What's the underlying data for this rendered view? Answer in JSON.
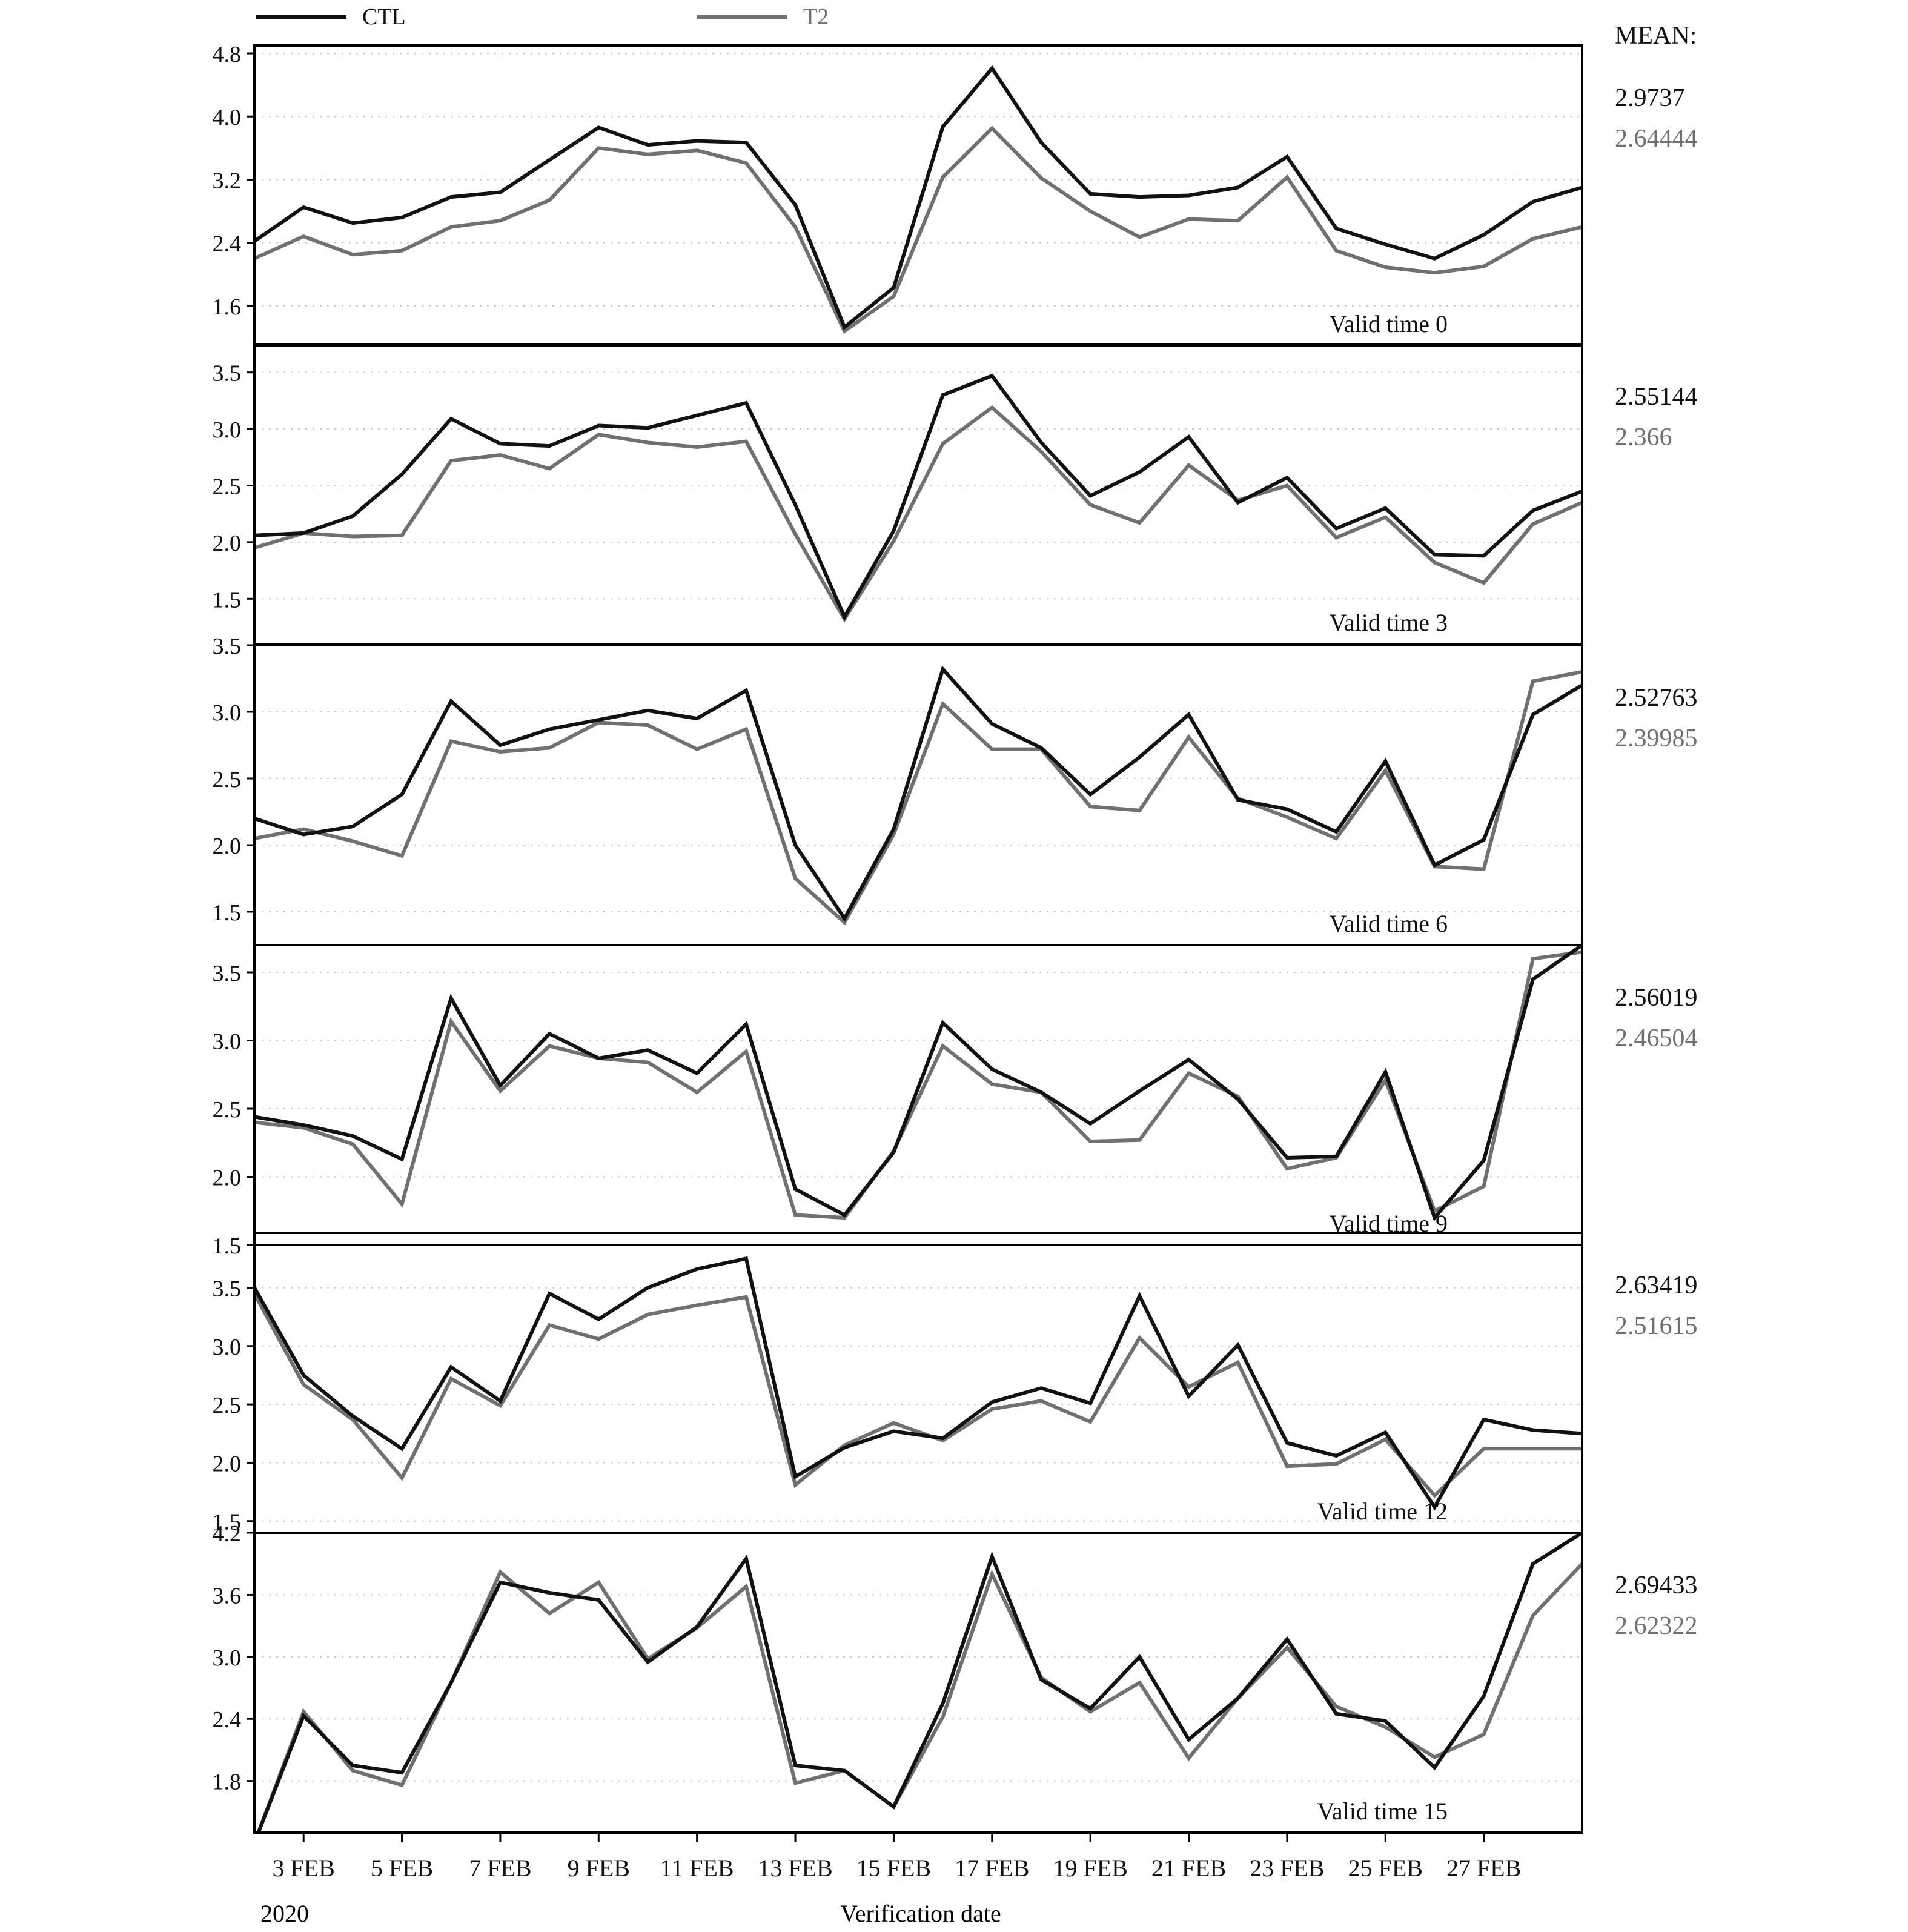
{
  "legend": [
    {
      "label": "CTL",
      "color": "#111111"
    },
    {
      "label": "T2",
      "color": "#707070"
    }
  ],
  "mean_title": "MEAN:",
  "x_axis": {
    "tick_labels": [
      "3 FEB",
      "5 FEB",
      "7 FEB",
      "9 FEB",
      "11 FEB",
      "13 FEB",
      "15 FEB",
      "17 FEB",
      "19 FEB",
      "21 FEB",
      "23 FEB",
      "25 FEB",
      "27 FEB"
    ],
    "year_label": "2020",
    "title": "Verification date"
  },
  "chart_data": [
    {
      "type": "line",
      "annotation": "Valid time 0",
      "x": [
        "2020-02-02",
        "2020-02-03",
        "2020-02-04",
        "2020-02-05",
        "2020-02-06",
        "2020-02-07",
        "2020-02-08",
        "2020-02-09",
        "2020-02-10",
        "2020-02-11",
        "2020-02-12",
        "2020-02-13",
        "2020-02-14",
        "2020-02-15",
        "2020-02-16",
        "2020-02-17",
        "2020-02-18",
        "2020-02-19",
        "2020-02-20",
        "2020-02-21",
        "2020-02-22",
        "2020-02-23",
        "2020-02-24",
        "2020-02-25",
        "2020-02-26",
        "2020-02-27",
        "2020-02-28",
        "2020-02-29"
      ],
      "ylim": [
        1.1,
        4.9
      ],
      "yticks": [
        "1.6",
        "2.4",
        "3.2",
        "4.0",
        "4.8"
      ],
      "series": [
        {
          "name": "CTL",
          "mean": "2.9737",
          "values": [
            2.42,
            2.85,
            2.65,
            2.72,
            2.98,
            3.04,
            3.45,
            3.86,
            3.64,
            3.69,
            3.67,
            2.88,
            1.33,
            1.83,
            3.87,
            4.61,
            3.67,
            3.02,
            2.98,
            3.0,
            3.1,
            3.49,
            2.58,
            2.38,
            2.2,
            2.5,
            2.92,
            3.1
          ]
        },
        {
          "name": "T2",
          "mean": "2.64444",
          "values": [
            2.2,
            2.48,
            2.25,
            2.3,
            2.6,
            2.68,
            2.94,
            3.6,
            3.52,
            3.57,
            3.41,
            2.6,
            1.28,
            1.72,
            3.23,
            3.85,
            3.22,
            2.8,
            2.47,
            2.7,
            2.68,
            3.23,
            2.3,
            2.09,
            2.02,
            2.1,
            2.45,
            2.6
          ]
        }
      ]
    },
    {
      "type": "line",
      "annotation": "Valid time 3",
      "x": [
        "2020-02-02",
        "2020-02-03",
        "2020-02-04",
        "2020-02-05",
        "2020-02-06",
        "2020-02-07",
        "2020-02-08",
        "2020-02-09",
        "2020-02-10",
        "2020-02-11",
        "2020-02-12",
        "2020-02-13",
        "2020-02-14",
        "2020-02-15",
        "2020-02-16",
        "2020-02-17",
        "2020-02-18",
        "2020-02-19",
        "2020-02-20",
        "2020-02-21",
        "2020-02-22",
        "2020-02-23",
        "2020-02-24",
        "2020-02-25",
        "2020-02-26",
        "2020-02-27",
        "2020-02-28",
        "2020-02-29"
      ],
      "ylim": [
        1.1,
        3.75
      ],
      "yticks": [
        "1.5",
        "2.0",
        "2.5",
        "3.0",
        "3.5"
      ],
      "series": [
        {
          "name": "CTL",
          "mean": "2.55144",
          "values": [
            2.06,
            2.08,
            2.23,
            2.6,
            3.09,
            2.87,
            2.85,
            3.03,
            3.01,
            3.12,
            3.23,
            2.33,
            1.34,
            2.1,
            3.3,
            3.47,
            2.88,
            2.41,
            2.62,
            2.93,
            2.35,
            2.57,
            2.12,
            2.3,
            1.89,
            1.88,
            2.28,
            2.45
          ]
        },
        {
          "name": "T2",
          "mean": "2.366",
          "values": [
            1.95,
            2.08,
            2.05,
            2.06,
            2.72,
            2.77,
            2.65,
            2.95,
            2.88,
            2.84,
            2.89,
            2.07,
            1.32,
            2.01,
            2.87,
            3.19,
            2.8,
            2.33,
            2.17,
            2.68,
            2.37,
            2.5,
            2.04,
            2.22,
            1.82,
            1.64,
            2.16,
            2.35
          ]
        }
      ]
    },
    {
      "type": "line",
      "annotation": "Valid time 6",
      "x": [
        "2020-02-02",
        "2020-02-03",
        "2020-02-04",
        "2020-02-05",
        "2020-02-06",
        "2020-02-07",
        "2020-02-08",
        "2020-02-09",
        "2020-02-10",
        "2020-02-11",
        "2020-02-12",
        "2020-02-13",
        "2020-02-14",
        "2020-02-15",
        "2020-02-16",
        "2020-02-17",
        "2020-02-18",
        "2020-02-19",
        "2020-02-20",
        "2020-02-21",
        "2020-02-22",
        "2020-02-23",
        "2020-02-24",
        "2020-02-25",
        "2020-02-26",
        "2020-02-27",
        "2020-02-28",
        "2020-02-29"
      ],
      "ylim": [
        1.25,
        3.5
      ],
      "yticks": [
        "1.5",
        "2.0",
        "2.5",
        "3.0",
        "3.5"
      ],
      "series": [
        {
          "name": "CTL",
          "mean": "2.52763",
          "values": [
            2.2,
            2.08,
            2.14,
            2.38,
            3.08,
            2.75,
            2.87,
            2.94,
            3.01,
            2.95,
            3.16,
            2.0,
            1.45,
            2.12,
            3.32,
            2.91,
            2.73,
            2.38,
            2.66,
            2.98,
            2.34,
            2.27,
            2.1,
            2.63,
            1.85,
            2.04,
            2.98,
            3.2
          ]
        },
        {
          "name": "T2",
          "mean": "2.39985",
          "values": [
            2.05,
            2.12,
            2.03,
            1.92,
            2.78,
            2.7,
            2.73,
            2.92,
            2.9,
            2.72,
            2.87,
            1.75,
            1.42,
            2.08,
            3.06,
            2.72,
            2.72,
            2.29,
            2.26,
            2.81,
            2.35,
            2.21,
            2.05,
            2.56,
            1.84,
            1.82,
            3.23,
            3.3
          ]
        }
      ]
    },
    {
      "type": "line",
      "annotation": "Valid time 9",
      "x": [
        "2020-02-02",
        "2020-02-03",
        "2020-02-04",
        "2020-02-05",
        "2020-02-06",
        "2020-02-07",
        "2020-02-08",
        "2020-02-09",
        "2020-02-10",
        "2020-02-11",
        "2020-02-12",
        "2020-02-13",
        "2020-02-14",
        "2020-02-15",
        "2020-02-16",
        "2020-02-17",
        "2020-02-18",
        "2020-02-19",
        "2020-02-20",
        "2020-02-21",
        "2020-02-22",
        "2020-02-23",
        "2020-02-24",
        "2020-02-25",
        "2020-02-26",
        "2020-02-27",
        "2020-02-28",
        "2020-02-29"
      ],
      "ylim": [
        1.5,
        3.7
      ],
      "yticks": [
        "1.5",
        "2.0",
        "2.5",
        "3.0",
        "3.5"
      ],
      "series": [
        {
          "name": "CTL",
          "mean": "2.56019",
          "values": [
            2.44,
            2.38,
            2.3,
            2.13,
            3.31,
            2.67,
            3.05,
            2.87,
            2.93,
            2.76,
            3.12,
            1.91,
            1.72,
            2.18,
            3.13,
            2.79,
            2.62,
            2.39,
            2.63,
            2.86,
            2.57,
            2.14,
            2.15,
            2.77,
            1.7,
            2.12,
            3.45,
            3.7
          ]
        },
        {
          "name": "T2",
          "mean": "2.46504",
          "values": [
            2.4,
            2.36,
            2.24,
            1.8,
            3.14,
            2.63,
            2.96,
            2.87,
            2.84,
            2.62,
            2.92,
            1.72,
            1.7,
            2.19,
            2.96,
            2.68,
            2.62,
            2.26,
            2.27,
            2.76,
            2.59,
            2.06,
            2.14,
            2.71,
            1.75,
            1.93,
            3.6,
            3.65
          ]
        }
      ]
    },
    {
      "type": "line",
      "annotation": "Valid time 12",
      "x": [
        "2020-02-02",
        "2020-02-03",
        "2020-02-04",
        "2020-02-05",
        "2020-02-06",
        "2020-02-07",
        "2020-02-08",
        "2020-02-09",
        "2020-02-10",
        "2020-02-11",
        "2020-02-12",
        "2020-02-13",
        "2020-02-14",
        "2020-02-15",
        "2020-02-16",
        "2020-02-17",
        "2020-02-18",
        "2020-02-19",
        "2020-02-20",
        "2020-02-21",
        "2020-02-22",
        "2020-02-23",
        "2020-02-24",
        "2020-02-25",
        "2020-02-26",
        "2020-02-27",
        "2020-02-28",
        "2020-02-29"
      ],
      "ylim": [
        1.4,
        3.97
      ],
      "yticks": [
        "1.5",
        "2.0",
        "2.5",
        "3.0",
        "3.5"
      ],
      "series": [
        {
          "name": "CTL",
          "mean": "2.63419",
          "values": [
            3.5,
            2.75,
            2.4,
            2.12,
            2.82,
            2.53,
            3.45,
            3.23,
            3.5,
            3.66,
            3.75,
            1.88,
            2.13,
            2.27,
            2.21,
            2.52,
            2.64,
            2.51,
            3.43,
            2.57,
            3.01,
            2.17,
            2.06,
            2.26,
            1.62,
            2.37,
            2.28,
            2.25
          ]
        },
        {
          "name": "T2",
          "mean": "2.51615",
          "values": [
            3.45,
            2.67,
            2.37,
            1.87,
            2.72,
            2.49,
            3.18,
            3.06,
            3.27,
            3.35,
            3.42,
            1.81,
            2.15,
            2.34,
            2.19,
            2.46,
            2.53,
            2.35,
            3.07,
            2.65,
            2.86,
            1.97,
            1.99,
            2.2,
            1.72,
            2.12,
            2.12,
            2.12
          ]
        }
      ]
    },
    {
      "type": "line",
      "annotation": "Valid time 15",
      "x": [
        "2020-02-02",
        "2020-02-03",
        "2020-02-04",
        "2020-02-05",
        "2020-02-06",
        "2020-02-07",
        "2020-02-08",
        "2020-02-09",
        "2020-02-10",
        "2020-02-11",
        "2020-02-12",
        "2020-02-13",
        "2020-02-14",
        "2020-02-15",
        "2020-02-16",
        "2020-02-17",
        "2020-02-18",
        "2020-02-19",
        "2020-02-20",
        "2020-02-21",
        "2020-02-22",
        "2020-02-23",
        "2020-02-24",
        "2020-02-25",
        "2020-02-26",
        "2020-02-27",
        "2020-02-28",
        "2020-02-29"
      ],
      "ylim": [
        1.3,
        4.2
      ],
      "yticks": [
        "1.8",
        "2.4",
        "3.0",
        "3.6",
        "4.2"
      ],
      "series": [
        {
          "name": "CTL",
          "mean": "2.69433",
          "values": [
            1.2,
            2.43,
            1.95,
            1.88,
            2.75,
            3.72,
            3.62,
            3.55,
            2.95,
            3.29,
            3.95,
            1.95,
            1.9,
            1.55,
            2.55,
            3.97,
            2.78,
            2.5,
            3.0,
            2.2,
            2.6,
            3.17,
            2.45,
            2.38,
            1.93,
            2.62,
            3.9,
            4.2
          ]
        },
        {
          "name": "T2",
          "mean": "2.62322",
          "values": [
            1.2,
            2.47,
            1.9,
            1.76,
            2.75,
            3.82,
            3.42,
            3.72,
            2.98,
            3.28,
            3.68,
            1.78,
            1.9,
            1.55,
            2.42,
            3.8,
            2.8,
            2.47,
            2.75,
            2.02,
            2.6,
            3.09,
            2.52,
            2.32,
            2.03,
            2.25,
            3.4,
            3.9
          ]
        }
      ]
    }
  ]
}
